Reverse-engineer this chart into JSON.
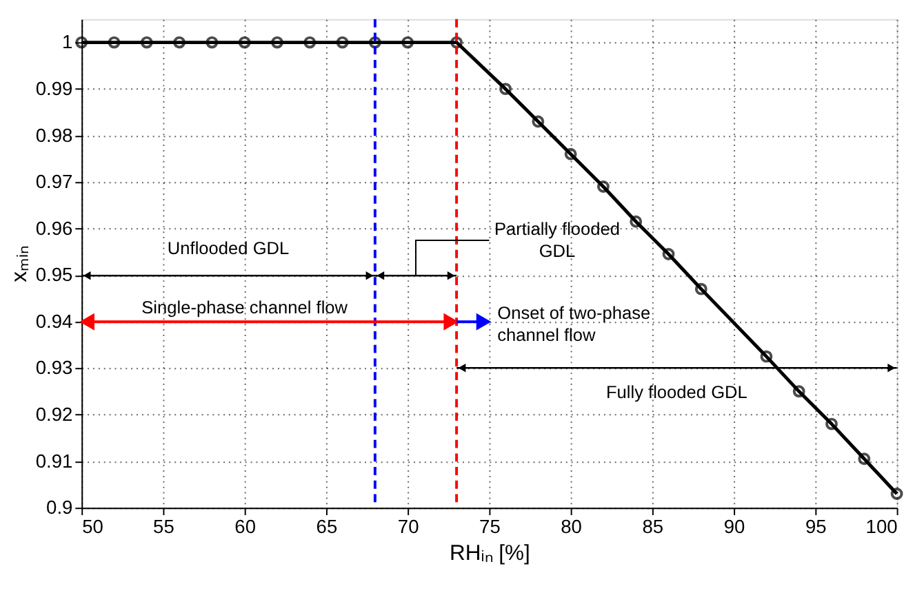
{
  "chart_data": {
    "type": "line",
    "xlabel": "RHᵢₙ [%]",
    "ylabel": "xₘᵢₙ",
    "series": [
      {
        "color": "#000000",
        "x": [
          50,
          52,
          54,
          56,
          58,
          60,
          62,
          64,
          66,
          68,
          70,
          73,
          76,
          78,
          80,
          82,
          84,
          86,
          88,
          92,
          94,
          96,
          98,
          100
        ],
        "values": [
          1,
          1,
          1,
          1,
          1,
          1,
          1,
          1,
          1,
          1,
          1,
          1,
          0.99,
          0.983,
          0.976,
          0.969,
          0.9615,
          0.9545,
          0.947,
          0.9325,
          0.925,
          0.918,
          0.9105,
          0.903
        ]
      }
    ],
    "xlim": [
      50,
      100
    ],
    "xticks": [
      50,
      55,
      60,
      65,
      70,
      75,
      80,
      85,
      90,
      95,
      100
    ],
    "ylim": [
      0.9,
      1.005
    ],
    "yticks": [
      0.9,
      0.91,
      0.92,
      0.93,
      0.94,
      0.95,
      0.96,
      0.97,
      0.98,
      0.99,
      1
    ],
    "grid": true,
    "marker": "circle",
    "line_style": "solid",
    "ref_lines": [
      {
        "axis": "x",
        "value": 68,
        "color": "#0000ff",
        "line_style": "dashed"
      },
      {
        "axis": "x",
        "value": 73,
        "color": "#ff0000",
        "line_style": "dashed"
      }
    ],
    "annotations": [
      "Unflooded GDL",
      "Partially flooded GDL",
      "Fully flooded GDL",
      "Single-phase channel flow",
      "Onset of two-phase channel flow"
    ]
  }
}
